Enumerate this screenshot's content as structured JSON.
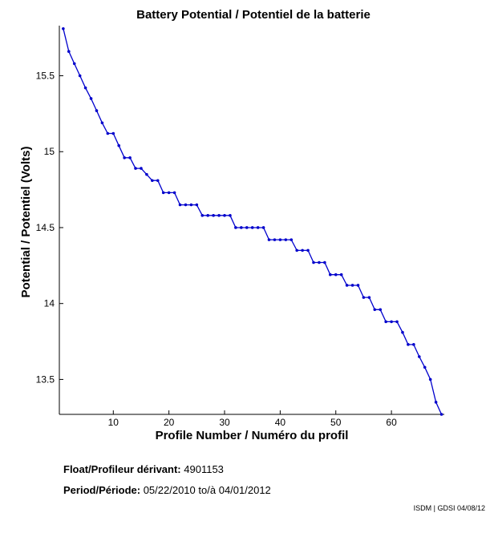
{
  "chart_data": {
    "type": "line",
    "title": "Battery Potential / Potentiel de la batterie",
    "xlabel": "Profile Number / Numéro du profil",
    "ylabel": "Potential / Potentiel (Volts)",
    "xlim": [
      0.3,
      69.5
    ],
    "ylim": [
      13.27,
      15.83
    ],
    "xticks": [
      10,
      20,
      30,
      40,
      50,
      60
    ],
    "yticks": [
      13.5,
      14,
      14.5,
      15,
      15.5
    ],
    "ytick_labels": [
      "13.5",
      "14",
      "14.5",
      "15",
      "15.5"
    ],
    "line_color": "#0000cc",
    "grid": false,
    "series": [
      {
        "x": [
          1,
          2,
          3,
          4,
          5,
          6,
          7,
          8,
          9,
          10,
          11,
          12,
          13,
          14,
          15,
          16,
          17,
          18,
          19,
          20,
          21,
          22,
          23,
          24,
          25,
          26,
          27,
          28,
          29,
          30,
          31,
          32,
          33,
          34,
          35,
          36,
          37,
          38,
          39,
          40,
          41,
          42,
          43,
          44,
          45,
          46,
          47,
          48,
          49,
          50,
          51,
          52,
          53,
          54,
          55,
          56,
          57,
          58,
          59,
          60,
          61,
          62,
          63,
          64,
          65,
          66,
          67,
          68,
          69
        ],
        "y": [
          15.81,
          15.66,
          15.58,
          15.5,
          15.42,
          15.35,
          15.27,
          15.19,
          15.12,
          15.12,
          15.04,
          14.96,
          14.96,
          14.89,
          14.89,
          14.85,
          14.81,
          14.81,
          14.73,
          14.73,
          14.73,
          14.65,
          14.65,
          14.65,
          14.65,
          14.58,
          14.58,
          14.58,
          14.58,
          14.58,
          14.58,
          14.5,
          14.5,
          14.5,
          14.5,
          14.5,
          14.5,
          14.42,
          14.42,
          14.42,
          14.42,
          14.42,
          14.35,
          14.35,
          14.35,
          14.27,
          14.27,
          14.27,
          14.19,
          14.19,
          14.19,
          14.12,
          14.12,
          14.12,
          14.04,
          14.04,
          13.96,
          13.96,
          13.88,
          13.88,
          13.88,
          13.81,
          13.73,
          13.73,
          13.65,
          13.58,
          13.5,
          13.35,
          13.27
        ]
      }
    ]
  },
  "footer": {
    "float_label": "Float/Profileur dérivant:",
    "float_value": "4901153",
    "period_label": "Period/Période:",
    "period_start": "05/22/2010",
    "period_sep": "to/à",
    "period_end": "04/01/2012",
    "credit": "ISDM | GDSI 04/08/12"
  }
}
